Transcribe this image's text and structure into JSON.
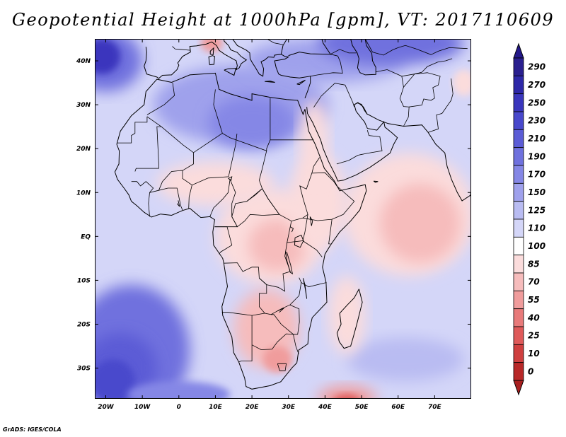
{
  "title": "Geopotential Height at 1000hPa [gpm], VT: 2017110609",
  "credit": "GrADS: IGES/COLA",
  "map": {
    "type": "filled-contour",
    "variable": "Geopotential Height at 1000hPa",
    "units": "gpm",
    "valid_time": "2017110609",
    "lon_range": [
      -23,
      80
    ],
    "lat_range": [
      -37,
      45
    ],
    "lat_ticks": [
      {
        "value": 40,
        "label": "40N"
      },
      {
        "value": 30,
        "label": "30N"
      },
      {
        "value": 20,
        "label": "20N"
      },
      {
        "value": 10,
        "label": "10N"
      },
      {
        "value": 0,
        "label": "EQ"
      },
      {
        "value": -10,
        "label": "10S"
      },
      {
        "value": -20,
        "label": "20S"
      },
      {
        "value": -30,
        "label": "30S"
      }
    ],
    "lon_ticks": [
      {
        "value": -20,
        "label": "20W"
      },
      {
        "value": -10,
        "label": "10W"
      },
      {
        "value": 0,
        "label": "0"
      },
      {
        "value": 10,
        "label": "10E"
      },
      {
        "value": 20,
        "label": "20E"
      },
      {
        "value": 30,
        "label": "30E"
      },
      {
        "value": 40,
        "label": "40E"
      },
      {
        "value": 50,
        "label": "50E"
      },
      {
        "value": 60,
        "label": "60E"
      },
      {
        "value": 70,
        "label": "70E"
      }
    ],
    "features": {
      "north_africa_plateau": "150",
      "arabian_sea_low": "85",
      "southern_africa_low": "70",
      "mediterranean_low": "55",
      "north_atlantic_high": "250",
      "south_atlantic_high": "210"
    }
  },
  "colorbar": {
    "levels": [
      {
        "label": "290",
        "color": "#2a1f8f"
      },
      {
        "label": "270",
        "color": "#2e28a8"
      },
      {
        "label": "250",
        "color": "#3a36bd"
      },
      {
        "label": "230",
        "color": "#4848cc"
      },
      {
        "label": "210",
        "color": "#5b5cd6"
      },
      {
        "label": "190",
        "color": "#6f71de"
      },
      {
        "label": "170",
        "color": "#8587e6"
      },
      {
        "label": "150",
        "color": "#9fa1ec"
      },
      {
        "label": "125",
        "color": "#b9bcf2"
      },
      {
        "label": "110",
        "color": "#d4d6f8"
      },
      {
        "label": "100",
        "color": "#ffffff"
      },
      {
        "label": "85",
        "color": "#fbdcdc"
      },
      {
        "label": "70",
        "color": "#f6bcbc"
      },
      {
        "label": "55",
        "color": "#f09c9c"
      },
      {
        "label": "40",
        "color": "#e87a7a"
      },
      {
        "label": "25",
        "color": "#df5a5a"
      },
      {
        "label": "10",
        "color": "#cf3f3f"
      },
      {
        "label": "0",
        "color": "#b82828"
      }
    ],
    "top_triangle_color": "#24188a",
    "bottom_triangle_color": "#a81f1f"
  }
}
